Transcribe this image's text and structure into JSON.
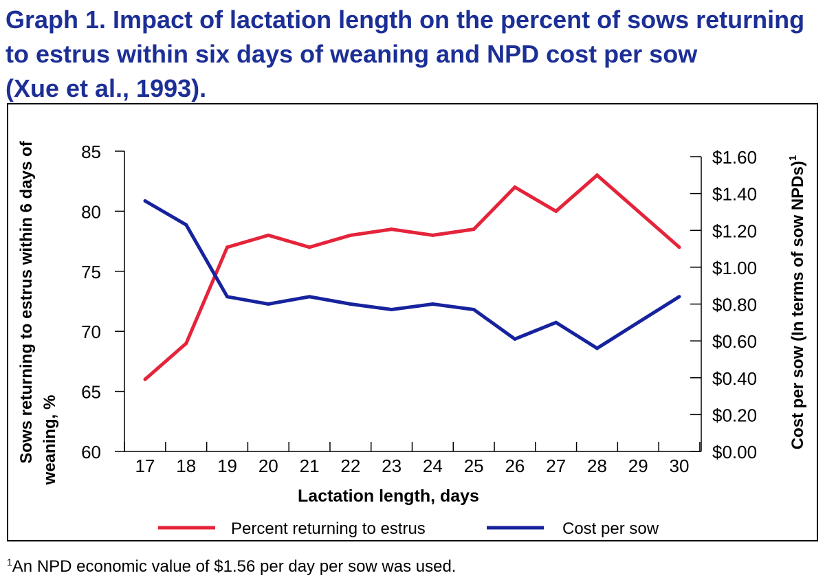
{
  "title": {
    "line1": "Graph 1. Impact of lactation length on the percent of sows returning",
    "line2": "to estrus within six days of weaning and NPD cost per sow",
    "line3": "(Xue et al., 1993)."
  },
  "footnote": {
    "marker": "1",
    "text": "An NPD economic value of $1.56 per day per sow was used."
  },
  "colors": {
    "red": "#e4243a",
    "blue": "#17239c",
    "title": "#1c2f96"
  },
  "chart_data": {
    "type": "line",
    "title": "Graph 1. Impact of lactation length on the percent of sows returning to estrus within six days of weaning and NPD cost per sow (Xue et al., 1993).",
    "xlabel": "Lactation length, days",
    "ylabel_left_line1": "Sows returning to estrus within 6 days of",
    "ylabel_left_line2": "weaning, %",
    "ylabel_right": "Cost per sow (In terms of sow NPDs)",
    "ylabel_right_sup": "1",
    "x": [
      17,
      18,
      19,
      20,
      21,
      22,
      23,
      24,
      25,
      26,
      27,
      28,
      29,
      30
    ],
    "x_tick_labels": [
      "17",
      "18",
      "19",
      "20",
      "21",
      "22",
      "23",
      "24",
      "25",
      "26",
      "27",
      "28",
      "29",
      "30"
    ],
    "ylim_left": [
      60,
      85
    ],
    "yticks_left": [
      "60",
      "65",
      "70",
      "75",
      "80",
      "85"
    ],
    "ylim_right": [
      0,
      1.6
    ],
    "yticks_right": [
      "$0.00",
      "$0.20",
      "$0.40",
      "$0.60",
      "$0.80",
      "$1.00",
      "$1.20",
      "$1.40",
      "$1.60"
    ],
    "series": [
      {
        "name": "Percent returning to estrus",
        "axis": "left",
        "color": "#e4243a",
        "values": [
          66,
          69,
          77,
          78,
          77,
          78,
          78.5,
          78,
          78.5,
          82,
          80,
          83,
          80,
          77
        ]
      },
      {
        "name": "Cost per sow",
        "axis": "right",
        "color": "#17239c",
        "values": [
          1.36,
          1.23,
          0.84,
          0.8,
          0.84,
          0.8,
          0.77,
          0.8,
          0.77,
          0.61,
          0.7,
          0.56,
          0.7,
          0.84
        ]
      }
    ],
    "legend_position": "bottom-center",
    "grid": false
  }
}
